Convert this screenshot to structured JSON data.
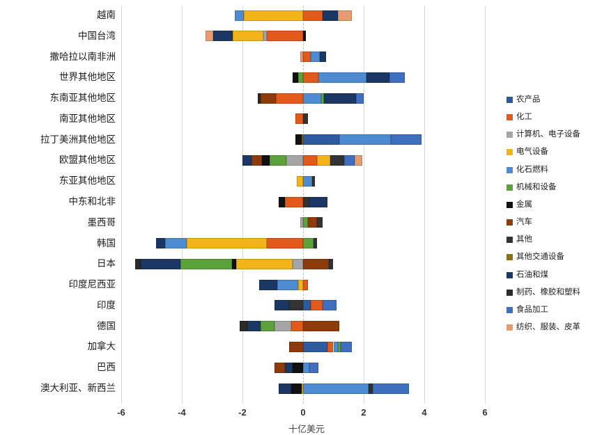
{
  "chart": {
    "xaxis_title": "十亿美元"
  },
  "chart_data": {
    "type": "bar",
    "orientation": "horizontal",
    "stacked": true,
    "xlabel": "十亿美元",
    "xlim": [
      -6.5,
      6.6
    ],
    "xticks": [
      -6,
      -4,
      -2,
      0,
      2,
      4,
      6
    ],
    "grid": "vertical-light, dashed zero line",
    "legend_position": "right",
    "unit": "billion USD",
    "series_legend": [
      {
        "name": "农产品",
        "color": "#2E5B9E"
      },
      {
        "name": "化工",
        "color": "#E05A1B"
      },
      {
        "name": "计算机、电子设备",
        "color": "#A5A5A5"
      },
      {
        "name": "电气设备",
        "color": "#F2B31B"
      },
      {
        "name": "化石燃料",
        "color": "#4F8BD0"
      },
      {
        "name": "机械和设备",
        "color": "#5CA23A"
      },
      {
        "name": "金属",
        "color": "#111111"
      },
      {
        "name": "汽车",
        "color": "#8E3B0C"
      },
      {
        "name": "其他",
        "color": "#333333"
      },
      {
        "name": "其他交通设备",
        "color": "#8F6E10"
      },
      {
        "name": "石油和煤",
        "color": "#1B3764"
      },
      {
        "name": "制药、橡胶和塑料",
        "color": "#2B2B2B"
      },
      {
        "name": "食品加工",
        "color": "#3F6FBE"
      },
      {
        "name": "纺织、服装、皮革",
        "color": "#E89B6C"
      }
    ],
    "categories": [
      "越南",
      "中国台湾",
      "撒哈拉以南非洲",
      "世界其他地区",
      "东南亚其他地区",
      "南亚其他地区",
      "拉丁美洲其他地区",
      "欧盟其他地区",
      "东亚其他地区",
      "中东和北非",
      "墨西哥",
      "韩国",
      "日本",
      "印度尼西亚",
      "印度",
      "德国",
      "加拿大",
      "巴西",
      "澳大利亚、新西兰"
    ],
    "rows": [
      {
        "category": "越南",
        "segments": [
          {
            "series": "电气设备",
            "value": -1.95
          },
          {
            "series": "化石燃料",
            "value": -0.3
          },
          {
            "series": "化工",
            "value": 0.65
          },
          {
            "series": "石油和煤",
            "value": 0.5
          },
          {
            "series": "纺织、服装、皮革",
            "value": 0.45
          }
        ]
      },
      {
        "category": "中国台湾",
        "segments": [
          {
            "series": "化工",
            "value": -1.2
          },
          {
            "series": "计算机、电子设备",
            "value": -0.12
          },
          {
            "series": "电气设备",
            "value": -1.0
          },
          {
            "series": "石油和煤",
            "value": -0.65
          },
          {
            "series": "纺织、服装、皮革",
            "value": -0.25
          },
          {
            "series": "金属",
            "value": 0.1
          }
        ]
      },
      {
        "category": "撒哈拉以南非洲",
        "segments": [
          {
            "series": "纺织、服装、皮革",
            "value": -0.1
          },
          {
            "series": "化工",
            "value": 0.25
          },
          {
            "series": "化石燃料",
            "value": 0.3
          },
          {
            "series": "石油和煤",
            "value": 0.2
          }
        ]
      },
      {
        "category": "世界其他地区",
        "segments": [
          {
            "series": "机械和设备",
            "value": -0.15
          },
          {
            "series": "金属",
            "value": -0.2
          },
          {
            "series": "化工",
            "value": 0.5
          },
          {
            "series": "化石燃料",
            "value": 1.6
          },
          {
            "series": "石油和煤",
            "value": 0.75
          },
          {
            "series": "食品加工",
            "value": 0.5
          }
        ]
      },
      {
        "category": "东南亚其他地区",
        "segments": [
          {
            "series": "化工",
            "value": -0.9
          },
          {
            "series": "汽车",
            "value": -0.5
          },
          {
            "series": "制药、橡胶和塑料",
            "value": -0.1
          },
          {
            "series": "化石燃料",
            "value": 0.6
          },
          {
            "series": "机械和设备",
            "value": 0.1
          },
          {
            "series": "石油和煤",
            "value": 1.05
          },
          {
            "series": "食品加工",
            "value": 0.25
          }
        ]
      },
      {
        "category": "南亚其他地区",
        "segments": [
          {
            "series": "化工",
            "value": -0.25
          },
          {
            "series": "其他",
            "value": 0.15
          }
        ]
      },
      {
        "category": "拉丁美洲其他地区",
        "segments": [
          {
            "series": "其他交通设备",
            "value": -0.05
          },
          {
            "series": "金属",
            "value": -0.2
          },
          {
            "series": "农产品",
            "value": 1.2
          },
          {
            "series": "化石燃料",
            "value": 1.7
          },
          {
            "series": "食品加工",
            "value": 1.0
          }
        ]
      },
      {
        "category": "欧盟其他地区",
        "segments": [
          {
            "series": "计算机、电子设备",
            "value": -0.55
          },
          {
            "series": "机械和设备",
            "value": -0.55
          },
          {
            "series": "金属",
            "value": -0.25
          },
          {
            "series": "汽车",
            "value": -0.35
          },
          {
            "series": "石油和煤",
            "value": -0.3
          },
          {
            "series": "化工",
            "value": 0.45
          },
          {
            "series": "电气设备",
            "value": 0.45
          },
          {
            "series": "其他",
            "value": 0.45
          },
          {
            "series": "食品加工",
            "value": 0.35
          },
          {
            "series": "纺织、服装、皮革",
            "value": 0.25
          }
        ]
      },
      {
        "category": "东亚其他地区",
        "segments": [
          {
            "series": "电气设备",
            "value": -0.2
          },
          {
            "series": "化石燃料",
            "value": 0.3
          },
          {
            "series": "其他",
            "value": 0.1
          }
        ]
      },
      {
        "category": "中东和北非",
        "segments": [
          {
            "series": "化工",
            "value": -0.6
          },
          {
            "series": "金属",
            "value": -0.2
          },
          {
            "series": "其他",
            "value": 0.2
          },
          {
            "series": "石油和煤",
            "value": 0.6
          }
        ]
      },
      {
        "category": "墨西哥",
        "segments": [
          {
            "series": "计算机、电子设备",
            "value": -0.1
          },
          {
            "series": "机械和设备",
            "value": 0.15
          },
          {
            "series": "汽车",
            "value": 0.3
          },
          {
            "series": "其他",
            "value": 0.2
          }
        ]
      },
      {
        "category": "韩国",
        "segments": [
          {
            "series": "化工",
            "value": -1.2
          },
          {
            "series": "电气设备",
            "value": -2.65
          },
          {
            "series": "化石燃料",
            "value": -0.7
          },
          {
            "series": "石油和煤",
            "value": -0.3
          },
          {
            "series": "机械和设备",
            "value": 0.35
          },
          {
            "series": "其他",
            "value": 0.1
          }
        ]
      },
      {
        "category": "日本",
        "segments": [
          {
            "series": "计算机、电子设备",
            "value": -0.35
          },
          {
            "series": "电气设备",
            "value": -1.85
          },
          {
            "series": "金属",
            "value": -0.15
          },
          {
            "series": "机械和设备",
            "value": -1.7
          },
          {
            "series": "石油和煤",
            "value": -1.3
          },
          {
            "series": "制药、橡胶和塑料",
            "value": -0.2
          },
          {
            "series": "汽车",
            "value": 0.85
          },
          {
            "series": "其他",
            "value": 0.15
          }
        ]
      },
      {
        "category": "印度尼西亚",
        "segments": [
          {
            "series": "电气设备",
            "value": -0.15
          },
          {
            "series": "化石燃料",
            "value": -0.7
          },
          {
            "series": "石油和煤",
            "value": -0.6
          },
          {
            "series": "化工",
            "value": 0.15
          }
        ]
      },
      {
        "category": "印度",
        "segments": [
          {
            "series": "其他",
            "value": -0.45
          },
          {
            "series": "石油和煤",
            "value": -0.5
          },
          {
            "series": "农产品",
            "value": 0.25
          },
          {
            "series": "化工",
            "value": 0.4
          },
          {
            "series": "食品加工",
            "value": 0.45
          }
        ]
      },
      {
        "category": "德国",
        "segments": [
          {
            "series": "化工",
            "value": -0.4
          },
          {
            "series": "计算机、电子设备",
            "value": -0.55
          },
          {
            "series": "机械和设备",
            "value": -0.45
          },
          {
            "series": "石油和煤",
            "value": -0.45
          },
          {
            "series": "制药、橡胶和塑料",
            "value": -0.25
          },
          {
            "series": "汽车",
            "value": 1.2
          }
        ]
      },
      {
        "category": "加拿大",
        "segments": [
          {
            "series": "汽车",
            "value": -0.45
          },
          {
            "series": "农产品",
            "value": 0.8
          },
          {
            "series": "化工",
            "value": 0.2
          },
          {
            "series": "化石燃料",
            "value": 0.15
          },
          {
            "series": "机械和设备",
            "value": 0.1
          },
          {
            "series": "食品加工",
            "value": 0.35
          }
        ]
      },
      {
        "category": "巴西",
        "segments": [
          {
            "series": "金属",
            "value": -0.35
          },
          {
            "series": "石油和煤",
            "value": -0.25
          },
          {
            "series": "汽车",
            "value": -0.35
          },
          {
            "series": "化石燃料",
            "value": 0.2
          },
          {
            "series": "食品加工",
            "value": 0.3
          }
        ]
      },
      {
        "category": "澳大利亚、新西兰",
        "segments": [
          {
            "series": "电气设备",
            "value": -0.05
          },
          {
            "series": "金属",
            "value": -0.35
          },
          {
            "series": "石油和煤",
            "value": -0.4
          },
          {
            "series": "化石燃料",
            "value": 2.15
          },
          {
            "series": "其他",
            "value": 0.15
          },
          {
            "series": "食品加工",
            "value": 1.2
          }
        ]
      }
    ]
  }
}
